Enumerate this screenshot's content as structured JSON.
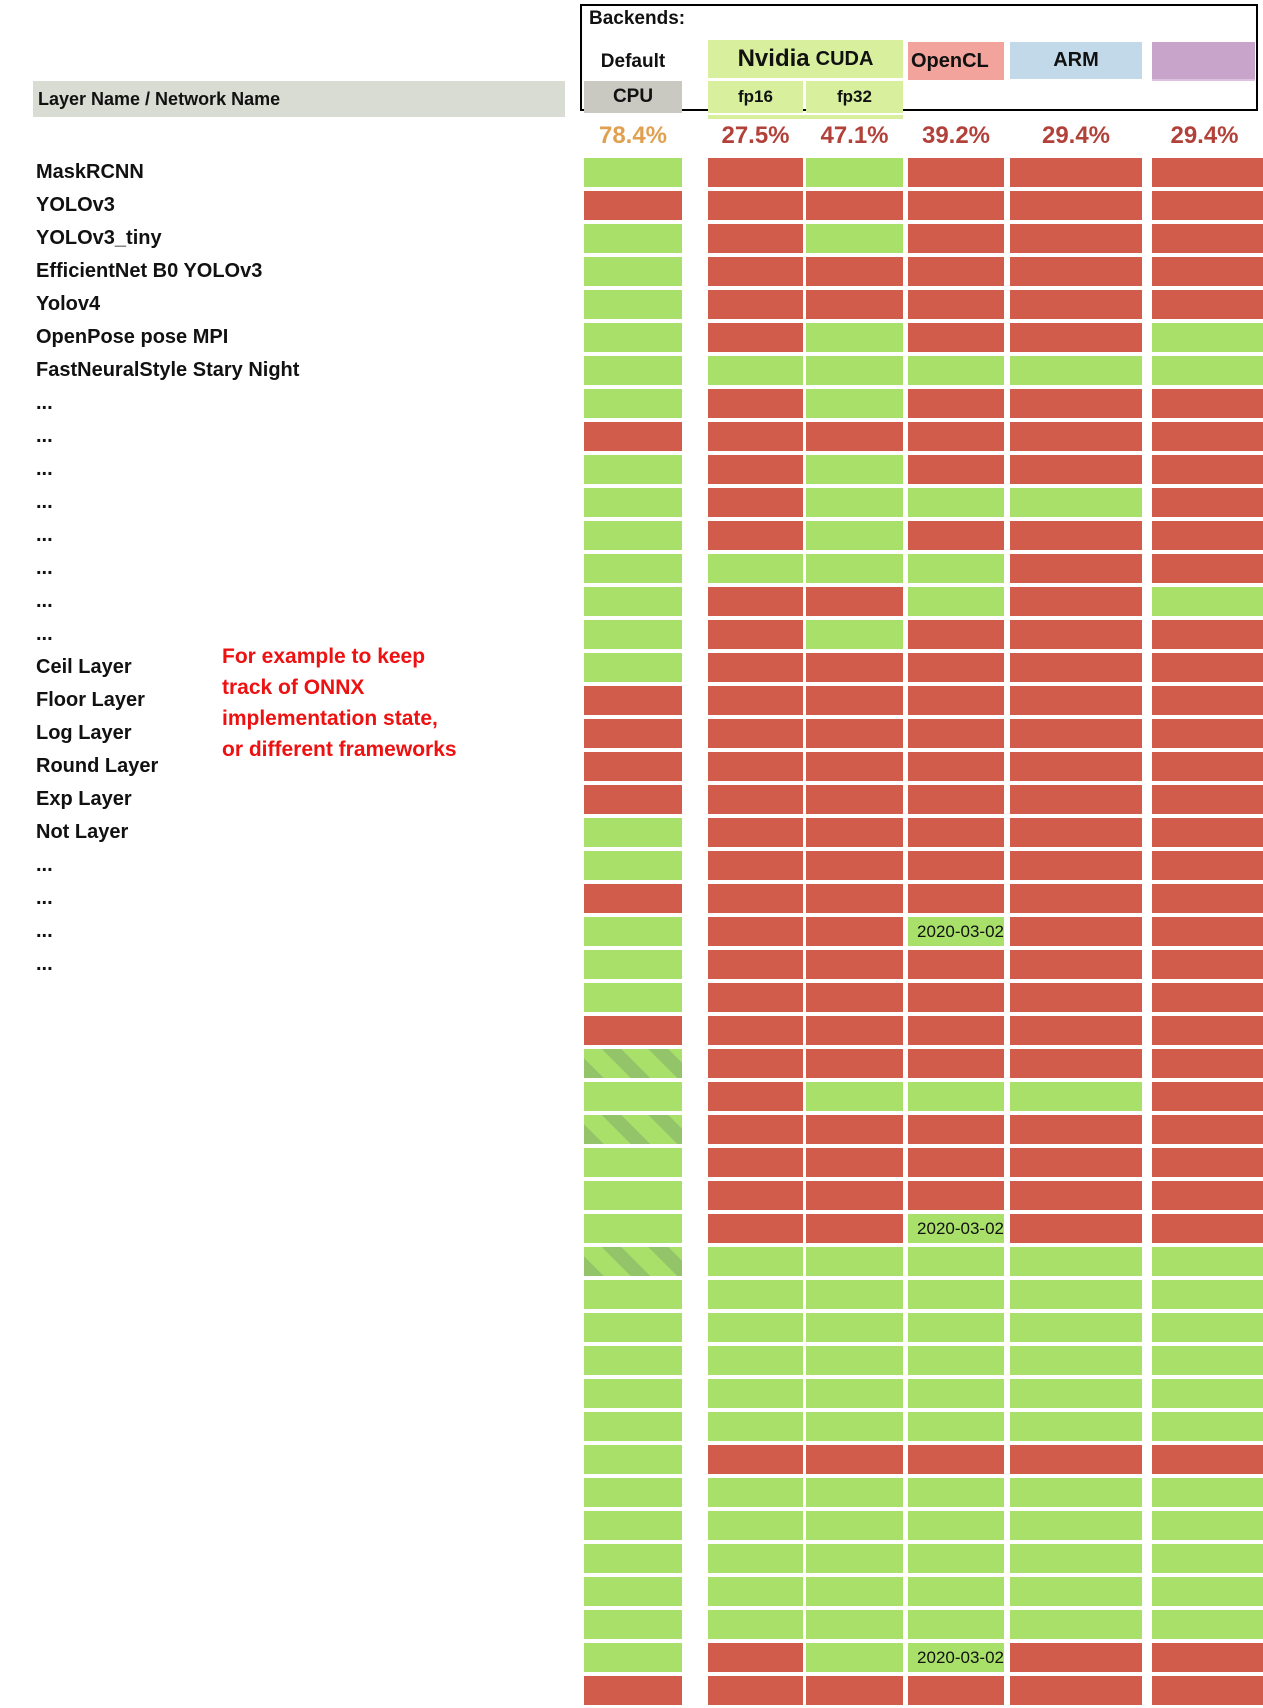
{
  "header": {
    "backends_label": "Backends:",
    "default_label": "Default",
    "cpu_label": "CPU",
    "nvidia_label": "Nvidia",
    "cuda_label": "CUDA",
    "fp16_label": "fp16",
    "fp32_label": "fp32",
    "opencl_label": "OpenCL",
    "arm_label": "ARM",
    "row_header": "Layer Name / Network Name"
  },
  "percent_row": {
    "values": [
      "78.4%",
      "27.5%",
      "47.1%",
      "39.2%",
      "29.4%",
      "29.4%"
    ],
    "first_color": "#e0a050",
    "rest_color": "#b2413a"
  },
  "annotation": {
    "text": "For example to keep\ntrack of ONNX\nimplementation state,\nor different frameworks",
    "color": "#ee1111"
  },
  "colors": {
    "supported": "#a8e06a",
    "unsupported": "#d15c4c",
    "hatch_dark": "#94c46a",
    "nvidia": "#d8ef9d",
    "opencl": "#f1a39c",
    "arm": "#c2d9e9",
    "purple": "#c8a4cb",
    "cpu_bg": "#c9c9c2",
    "band_bg": "#d9dcd2"
  },
  "matrix": {
    "date_text": "2020-03-02",
    "columns": [
      "CPU",
      "fp16",
      "fp32",
      "OpenCL",
      "ARM",
      ""
    ],
    "legend": {
      "g": "supported",
      "r": "unsupported",
      "h": "supported-hatched",
      "d": "supported-with-date"
    },
    "rows": [
      {
        "label": "MaskRCNN",
        "cells": [
          "g",
          "r",
          "g",
          "r",
          "r",
          "r"
        ]
      },
      {
        "label": "YOLOv3",
        "cells": [
          "r",
          "r",
          "r",
          "r",
          "r",
          "r"
        ]
      },
      {
        "label": "YOLOv3_tiny",
        "cells": [
          "g",
          "r",
          "g",
          "r",
          "r",
          "r"
        ]
      },
      {
        "label": "EfficientNet B0 YOLOv3",
        "cells": [
          "g",
          "r",
          "r",
          "r",
          "r",
          "r"
        ]
      },
      {
        "label": "Yolov4",
        "cells": [
          "g",
          "r",
          "r",
          "r",
          "r",
          "r"
        ]
      },
      {
        "label": "OpenPose pose MPI",
        "cells": [
          "g",
          "r",
          "g",
          "r",
          "r",
          "g"
        ]
      },
      {
        "label": "FastNeuralStyle Stary Night",
        "cells": [
          "g",
          "g",
          "g",
          "g",
          "g",
          "g"
        ]
      },
      {
        "label": "...",
        "cells": [
          "g",
          "r",
          "g",
          "r",
          "r",
          "r"
        ]
      },
      {
        "label": "...",
        "cells": [
          "r",
          "r",
          "r",
          "r",
          "r",
          "r"
        ]
      },
      {
        "label": "...",
        "cells": [
          "g",
          "r",
          "g",
          "r",
          "r",
          "r"
        ]
      },
      {
        "label": "...",
        "cells": [
          "g",
          "r",
          "g",
          "g",
          "g",
          "r"
        ]
      },
      {
        "label": "...",
        "cells": [
          "g",
          "r",
          "g",
          "r",
          "r",
          "r"
        ]
      },
      {
        "label": "...",
        "cells": [
          "g",
          "g",
          "g",
          "g",
          "r",
          "r"
        ]
      },
      {
        "label": "...",
        "cells": [
          "g",
          "r",
          "r",
          "g",
          "r",
          "g"
        ]
      },
      {
        "label": "...",
        "cells": [
          "g",
          "r",
          "g",
          "r",
          "r",
          "r"
        ]
      },
      {
        "label": "Ceil Layer",
        "cells": [
          "g",
          "r",
          "r",
          "r",
          "r",
          "r"
        ]
      },
      {
        "label": "Floor Layer",
        "cells": [
          "r",
          "r",
          "r",
          "r",
          "r",
          "r"
        ]
      },
      {
        "label": "Log Layer",
        "cells": [
          "r",
          "r",
          "r",
          "r",
          "r",
          "r"
        ]
      },
      {
        "label": "Round Layer",
        "cells": [
          "r",
          "r",
          "r",
          "r",
          "r",
          "r"
        ]
      },
      {
        "label": "Exp Layer",
        "cells": [
          "r",
          "r",
          "r",
          "r",
          "r",
          "r"
        ]
      },
      {
        "label": "Not Layer",
        "cells": [
          "g",
          "r",
          "r",
          "r",
          "r",
          "r"
        ]
      },
      {
        "label": "...",
        "cells": [
          "g",
          "r",
          "r",
          "r",
          "r",
          "r"
        ]
      },
      {
        "label": "...",
        "cells": [
          "r",
          "r",
          "r",
          "r",
          "r",
          "r"
        ]
      },
      {
        "label": "...",
        "cells": [
          "g",
          "r",
          "r",
          "d",
          "r",
          "r"
        ]
      },
      {
        "label": "...",
        "cells": [
          "g",
          "r",
          "r",
          "r",
          "r",
          "r"
        ]
      },
      {
        "label": "",
        "cells": [
          "g",
          "r",
          "r",
          "r",
          "r",
          "r"
        ]
      },
      {
        "label": "",
        "cells": [
          "r",
          "r",
          "r",
          "r",
          "r",
          "r"
        ]
      },
      {
        "label": "",
        "cells": [
          "h",
          "r",
          "r",
          "r",
          "r",
          "r"
        ]
      },
      {
        "label": "",
        "cells": [
          "g",
          "r",
          "g",
          "g",
          "g",
          "r"
        ]
      },
      {
        "label": "",
        "cells": [
          "h",
          "r",
          "r",
          "r",
          "r",
          "r"
        ]
      },
      {
        "label": "",
        "cells": [
          "g",
          "r",
          "r",
          "r",
          "r",
          "r"
        ]
      },
      {
        "label": "",
        "cells": [
          "g",
          "r",
          "r",
          "r",
          "r",
          "r"
        ]
      },
      {
        "label": "",
        "cells": [
          "g",
          "r",
          "r",
          "d",
          "r",
          "r"
        ]
      },
      {
        "label": "",
        "cells": [
          "h",
          "g",
          "g",
          "g",
          "g",
          "g"
        ]
      },
      {
        "label": "",
        "cells": [
          "g",
          "g",
          "g",
          "g",
          "g",
          "g"
        ]
      },
      {
        "label": "",
        "cells": [
          "g",
          "g",
          "g",
          "g",
          "g",
          "g"
        ]
      },
      {
        "label": "",
        "cells": [
          "g",
          "g",
          "g",
          "g",
          "g",
          "g"
        ]
      },
      {
        "label": "",
        "cells": [
          "g",
          "g",
          "g",
          "g",
          "g",
          "g"
        ]
      },
      {
        "label": "",
        "cells": [
          "g",
          "g",
          "g",
          "g",
          "g",
          "g"
        ]
      },
      {
        "label": "",
        "cells": [
          "g",
          "r",
          "r",
          "r",
          "r",
          "r"
        ]
      },
      {
        "label": "",
        "cells": [
          "g",
          "g",
          "g",
          "g",
          "g",
          "g"
        ]
      },
      {
        "label": "",
        "cells": [
          "g",
          "g",
          "g",
          "g",
          "g",
          "g"
        ]
      },
      {
        "label": "",
        "cells": [
          "g",
          "g",
          "g",
          "g",
          "g",
          "g"
        ]
      },
      {
        "label": "",
        "cells": [
          "g",
          "g",
          "g",
          "g",
          "g",
          "g"
        ]
      },
      {
        "label": "",
        "cells": [
          "g",
          "g",
          "g",
          "g",
          "g",
          "g"
        ]
      },
      {
        "label": "",
        "cells": [
          "g",
          "r",
          "g",
          "d",
          "r",
          "r"
        ]
      },
      {
        "label": "",
        "cells": [
          "r",
          "r",
          "r",
          "r",
          "r",
          "r"
        ]
      }
    ]
  }
}
